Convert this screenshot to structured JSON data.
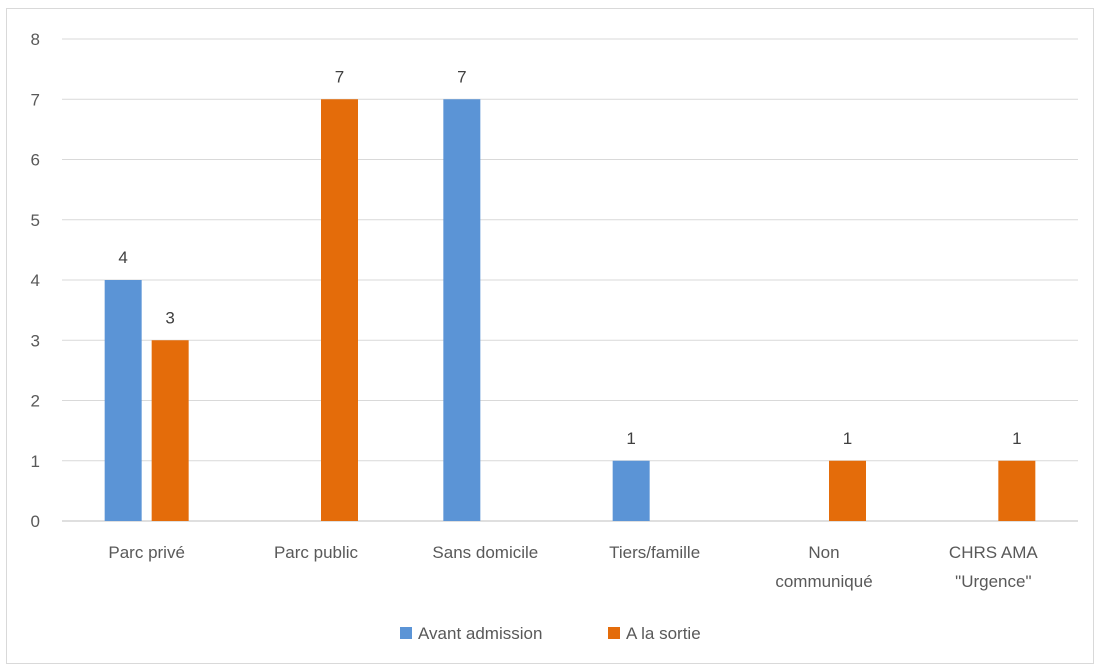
{
  "chart_data": {
    "type": "bar",
    "categories": [
      [
        "Parc privé"
      ],
      [
        "Parc public"
      ],
      [
        "Sans domicile"
      ],
      [
        "Tiers/famille"
      ],
      [
        "Non",
        "communiqué"
      ],
      [
        "CHRS AMA",
        "\"Urgence\""
      ]
    ],
    "series": [
      {
        "name": "Avant admission",
        "color": "#5b94d6",
        "values": [
          4,
          0,
          7,
          1,
          0,
          0
        ]
      },
      {
        "name": "A la sortie",
        "color": "#e46c0a",
        "values": [
          3,
          7,
          0,
          0,
          1,
          1
        ]
      }
    ],
    "yticks": [
      "0",
      "1",
      "2",
      "3",
      "4",
      "5",
      "6",
      "7",
      "8"
    ],
    "ylim": [
      0,
      8
    ],
    "grid": true,
    "legend": "bottom",
    "data_labels": true
  }
}
